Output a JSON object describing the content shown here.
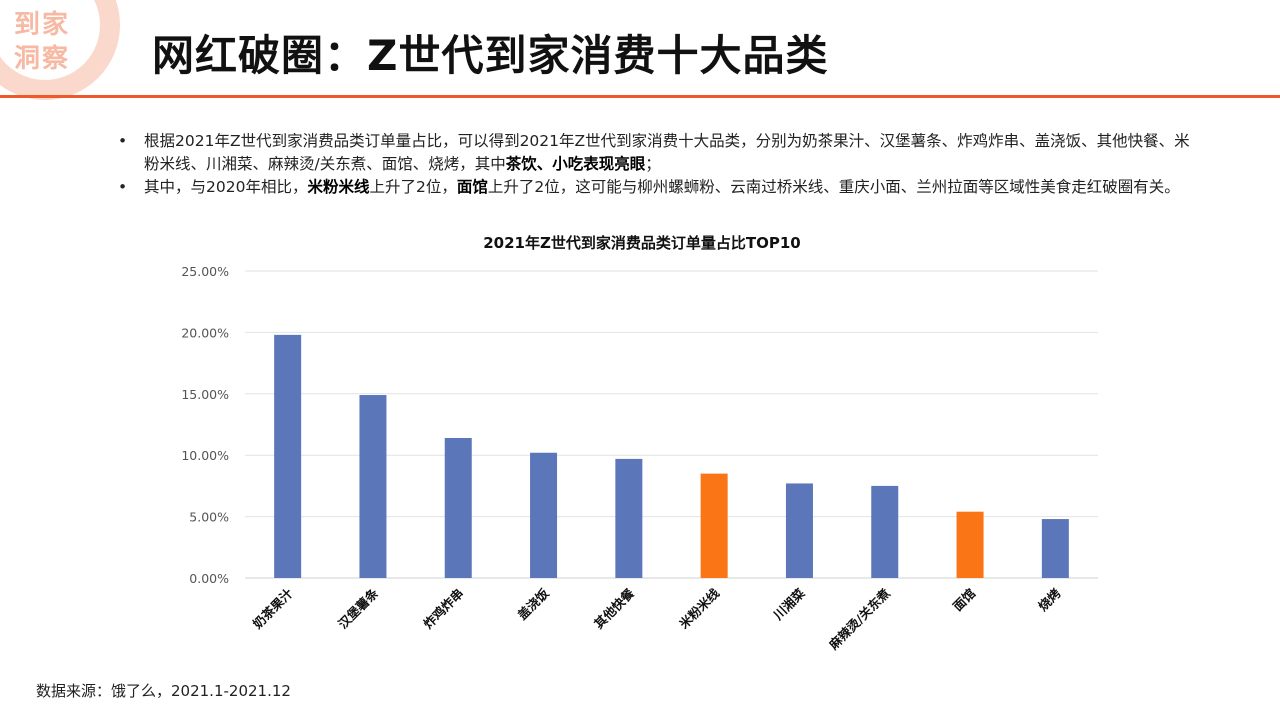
{
  "logo": {
    "line1": "到家",
    "line2": "洞察"
  },
  "header": {
    "title": "网红破圈：Z世代到家消费十大品类"
  },
  "bullets": {
    "b1_prefix": "根据2021年Z世代到家消费品类订单量占比，可以得到2021年Z世代到家消费十大品类，分别为奶茶果汁、汉堡薯条、炸鸡炸串、盖浇饭、其他快餐、米粉米线、川湘菜、麻辣烫/关东煮、面馆、烧烤，其中",
    "b1_bold": "茶饮、小吃表现亮眼",
    "b1_suffix": "；",
    "b2_prefix": "其中，与2020年相比，",
    "b2_bold1": "米粉米线",
    "b2_mid": "上升了2位，",
    "b2_bold2": "面馆",
    "b2_suffix": "上升了2位，这可能与柳州螺蛳粉、云南过桥米线、重庆小面、兰州拉面等区域性美食走红破圈有关。"
  },
  "chart_data": {
    "type": "bar",
    "title": "2021年Z世代到家消费品类订单量占比TOP10",
    "categories": [
      "奶茶果汁",
      "汉堡薯条",
      "炸鸡炸串",
      "盖浇饭",
      "其他快餐",
      "米粉米线",
      "川湘菜",
      "麻辣烫/关东煮",
      "面馆",
      "烧烤"
    ],
    "values": [
      19.8,
      14.9,
      11.4,
      10.2,
      9.7,
      8.5,
      7.7,
      7.5,
      5.4,
      4.8
    ],
    "highlight": [
      false,
      false,
      false,
      false,
      false,
      true,
      false,
      false,
      true,
      false
    ],
    "ylim": [
      0,
      25
    ],
    "yticks": [
      0,
      5,
      10,
      15,
      20,
      25
    ],
    "ytick_labels": [
      "0.00%",
      "5.00%",
      "10.00%",
      "15.00%",
      "20.00%",
      "25.00%"
    ],
    "xlabel": "",
    "ylabel": "",
    "grid": true,
    "colors": {
      "default": "#5b76b9",
      "highlight": "#f97516",
      "grid": "#e2e2e2",
      "axis": "#d0d0d0"
    }
  },
  "footer": {
    "source": "数据来源：饿了么，2021.1-2021.12"
  }
}
